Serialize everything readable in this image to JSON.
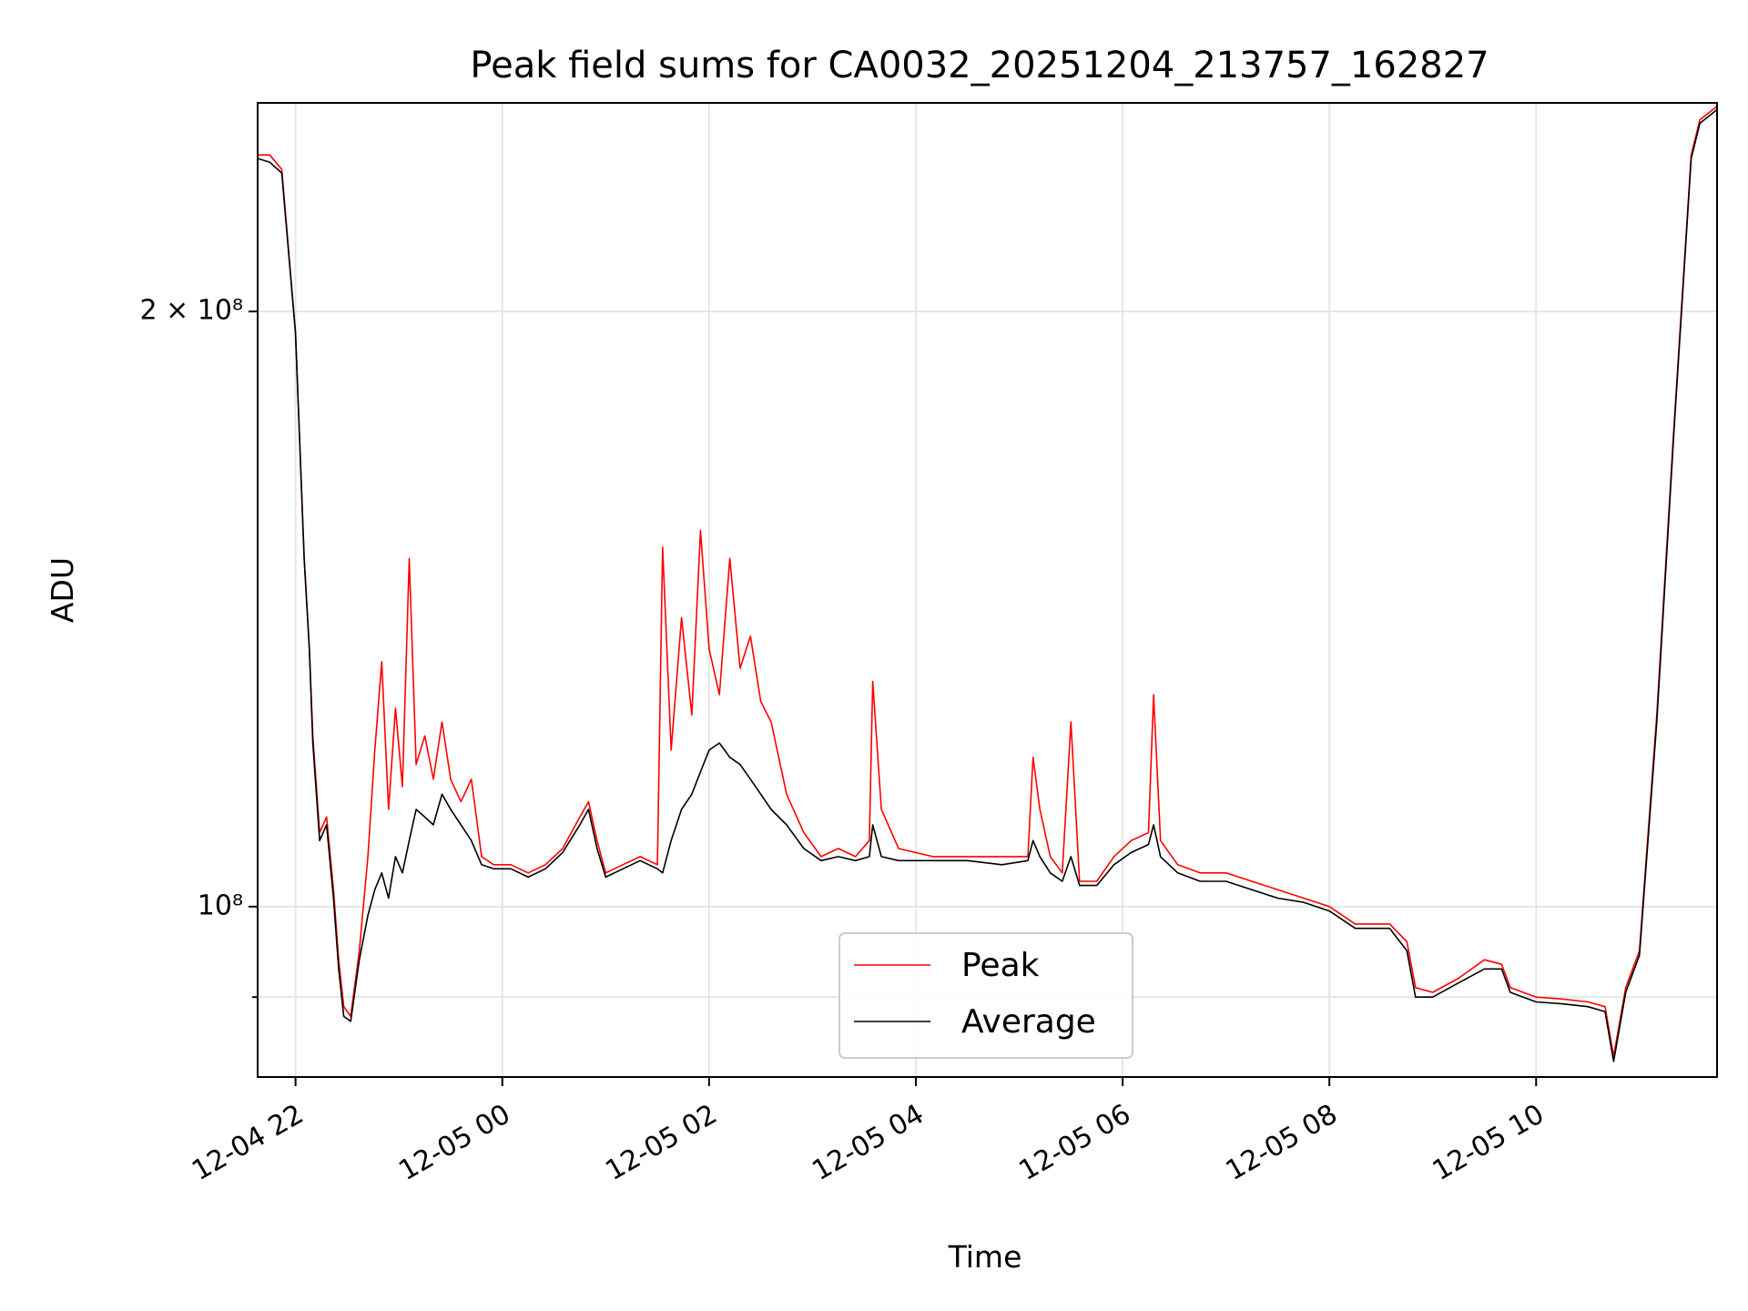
{
  "chart_data": {
    "type": "line",
    "title": "Peak field sums for CA0032_20251204_213757_162827",
    "xlabel": "Time",
    "ylabel": "ADU",
    "y_scale": "log",
    "ylim": [
      82000000,
      255000000
    ],
    "xlim": [
      "2025-12-04 21:38",
      "2025-12-05 11:45"
    ],
    "grid": true,
    "legend_position": "lower-center",
    "x_ticks": [
      {
        "value": "2025-12-04 22:00",
        "label": "12-04 22"
      },
      {
        "value": "2025-12-05 00:00",
        "label": "12-05 00"
      },
      {
        "value": "2025-12-05 02:00",
        "label": "12-05 02"
      },
      {
        "value": "2025-12-05 04:00",
        "label": "12-05 04"
      },
      {
        "value": "2025-12-05 06:00",
        "label": "12-05 06"
      },
      {
        "value": "2025-12-05 08:00",
        "label": "12-05 08"
      },
      {
        "value": "2025-12-05 10:00",
        "label": "12-05 10"
      }
    ],
    "y_ticks": [
      {
        "value": 200000000,
        "label": "2 × 10⁸",
        "major": true
      },
      {
        "value": 100000000,
        "label": "10⁸",
        "major": true
      },
      {
        "value": 90000000,
        "label": "",
        "major": false
      }
    ],
    "series": [
      {
        "name": "Peak",
        "color": "#ff0000",
        "points": [
          [
            "2025-12-04 21:38",
            240000000
          ],
          [
            "2025-12-04 21:45",
            240000000
          ],
          [
            "2025-12-04 21:52",
            236000000
          ],
          [
            "2025-12-04 22:00",
            195000000
          ],
          [
            "2025-12-04 22:05",
            150000000
          ],
          [
            "2025-12-04 22:08",
            135000000
          ],
          [
            "2025-12-04 22:10",
            122000000
          ],
          [
            "2025-12-04 22:14",
            109000000
          ],
          [
            "2025-12-04 22:18",
            111000000
          ],
          [
            "2025-12-04 22:22",
            102000000
          ],
          [
            "2025-12-04 22:25",
            94000000
          ],
          [
            "2025-12-04 22:28",
            89000000
          ],
          [
            "2025-12-04 22:32",
            88000000
          ],
          [
            "2025-12-04 22:37",
            95000000
          ],
          [
            "2025-12-04 22:42",
            106000000
          ],
          [
            "2025-12-04 22:46",
            120000000
          ],
          [
            "2025-12-04 22:50",
            133000000
          ],
          [
            "2025-12-04 22:54",
            112000000
          ],
          [
            "2025-12-04 22:58",
            126000000
          ],
          [
            "2025-12-04 23:02",
            115000000
          ],
          [
            "2025-12-04 23:06",
            150000000
          ],
          [
            "2025-12-04 23:10",
            118000000
          ],
          [
            "2025-12-04 23:15",
            122000000
          ],
          [
            "2025-12-04 23:20",
            116000000
          ],
          [
            "2025-12-04 23:25",
            124000000
          ],
          [
            "2025-12-04 23:30",
            116000000
          ],
          [
            "2025-12-04 23:36",
            113000000
          ],
          [
            "2025-12-04 23:42",
            116000000
          ],
          [
            "2025-12-04 23:48",
            106000000
          ],
          [
            "2025-12-04 23:55",
            105000000
          ],
          [
            "2025-12-05 00:05",
            105000000
          ],
          [
            "2025-12-05 00:15",
            104000000
          ],
          [
            "2025-12-05 00:25",
            105000000
          ],
          [
            "2025-12-05 00:35",
            107000000
          ],
          [
            "2025-12-05 00:45",
            111000000
          ],
          [
            "2025-12-05 00:50",
            113000000
          ],
          [
            "2025-12-05 00:55",
            108000000
          ],
          [
            "2025-12-05 01:00",
            104000000
          ],
          [
            "2025-12-05 01:10",
            105000000
          ],
          [
            "2025-12-05 01:20",
            106000000
          ],
          [
            "2025-12-05 01:30",
            105000000
          ],
          [
            "2025-12-05 01:33",
            152000000
          ],
          [
            "2025-12-05 01:38",
            120000000
          ],
          [
            "2025-12-05 01:44",
            140000000
          ],
          [
            "2025-12-05 01:50",
            125000000
          ],
          [
            "2025-12-05 01:55",
            155000000
          ],
          [
            "2025-12-05 02:00",
            135000000
          ],
          [
            "2025-12-05 02:06",
            128000000
          ],
          [
            "2025-12-05 02:12",
            150000000
          ],
          [
            "2025-12-05 02:18",
            132000000
          ],
          [
            "2025-12-05 02:24",
            137000000
          ],
          [
            "2025-12-05 02:30",
            127000000
          ],
          [
            "2025-12-05 02:36",
            124000000
          ],
          [
            "2025-12-05 02:45",
            114000000
          ],
          [
            "2025-12-05 02:55",
            109000000
          ],
          [
            "2025-12-05 03:05",
            106000000
          ],
          [
            "2025-12-05 03:15",
            107000000
          ],
          [
            "2025-12-05 03:25",
            106000000
          ],
          [
            "2025-12-05 03:33",
            108000000
          ],
          [
            "2025-12-05 03:35",
            130000000
          ],
          [
            "2025-12-05 03:40",
            112000000
          ],
          [
            "2025-12-05 03:50",
            107000000
          ],
          [
            "2025-12-05 04:10",
            106000000
          ],
          [
            "2025-12-05 04:30",
            106000000
          ],
          [
            "2025-12-05 04:50",
            106000000
          ],
          [
            "2025-12-05 05:05",
            106000000
          ],
          [
            "2025-12-05 05:08",
            119000000
          ],
          [
            "2025-12-05 05:12",
            112000000
          ],
          [
            "2025-12-05 05:18",
            106000000
          ],
          [
            "2025-12-05 05:25",
            104000000
          ],
          [
            "2025-12-05 05:30",
            124000000
          ],
          [
            "2025-12-05 05:35",
            103000000
          ],
          [
            "2025-12-05 05:45",
            103000000
          ],
          [
            "2025-12-05 05:55",
            106000000
          ],
          [
            "2025-12-05 06:05",
            108000000
          ],
          [
            "2025-12-05 06:15",
            109000000
          ],
          [
            "2025-12-05 06:18",
            128000000
          ],
          [
            "2025-12-05 06:22",
            108000000
          ],
          [
            "2025-12-05 06:32",
            105000000
          ],
          [
            "2025-12-05 06:45",
            104000000
          ],
          [
            "2025-12-05 07:00",
            104000000
          ],
          [
            "2025-12-05 07:15",
            103000000
          ],
          [
            "2025-12-05 07:30",
            102000000
          ],
          [
            "2025-12-05 07:45",
            101000000
          ],
          [
            "2025-12-05 08:00",
            100000000
          ],
          [
            "2025-12-05 08:15",
            98000000
          ],
          [
            "2025-12-05 08:35",
            98000000
          ],
          [
            "2025-12-05 08:45",
            96000000
          ],
          [
            "2025-12-05 08:50",
            91000000
          ],
          [
            "2025-12-05 09:00",
            90500000
          ],
          [
            "2025-12-05 09:15",
            92000000
          ],
          [
            "2025-12-05 09:30",
            94000000
          ],
          [
            "2025-12-05 09:40",
            93500000
          ],
          [
            "2025-12-05 09:45",
            91000000
          ],
          [
            "2025-12-05 10:00",
            90000000
          ],
          [
            "2025-12-05 10:15",
            89800000
          ],
          [
            "2025-12-05 10:30",
            89500000
          ],
          [
            "2025-12-05 10:40",
            89000000
          ],
          [
            "2025-12-05 10:45",
            84000000
          ],
          [
            "2025-12-05 10:52",
            91000000
          ],
          [
            "2025-12-05 11:00",
            95000000
          ],
          [
            "2025-12-05 11:10",
            125000000
          ],
          [
            "2025-12-05 11:20",
            175000000
          ],
          [
            "2025-12-05 11:30",
            240000000
          ],
          [
            "2025-12-05 11:35",
            250000000
          ],
          [
            "2025-12-05 11:45",
            254000000
          ]
        ]
      },
      {
        "name": "Average",
        "color": "#000000",
        "points": [
          [
            "2025-12-04 21:38",
            239000000
          ],
          [
            "2025-12-04 21:45",
            238000000
          ],
          [
            "2025-12-04 21:52",
            235000000
          ],
          [
            "2025-12-04 22:00",
            195000000
          ],
          [
            "2025-12-04 22:05",
            150000000
          ],
          [
            "2025-12-04 22:08",
            135000000
          ],
          [
            "2025-12-04 22:10",
            121000000
          ],
          [
            "2025-12-04 22:14",
            108000000
          ],
          [
            "2025-12-04 22:18",
            110000000
          ],
          [
            "2025-12-04 22:22",
            101000000
          ],
          [
            "2025-12-04 22:25",
            93000000
          ],
          [
            "2025-12-04 22:28",
            88000000
          ],
          [
            "2025-12-04 22:32",
            87500000
          ],
          [
            "2025-12-04 22:37",
            94000000
          ],
          [
            "2025-12-04 22:42",
            99000000
          ],
          [
            "2025-12-04 22:46",
            102000000
          ],
          [
            "2025-12-04 22:50",
            104000000
          ],
          [
            "2025-12-04 22:54",
            101000000
          ],
          [
            "2025-12-04 22:58",
            106000000
          ],
          [
            "2025-12-04 23:02",
            104000000
          ],
          [
            "2025-12-04 23:06",
            108000000
          ],
          [
            "2025-12-04 23:10",
            112000000
          ],
          [
            "2025-12-04 23:15",
            111000000
          ],
          [
            "2025-12-04 23:20",
            110000000
          ],
          [
            "2025-12-04 23:25",
            114000000
          ],
          [
            "2025-12-04 23:30",
            112000000
          ],
          [
            "2025-12-04 23:36",
            110000000
          ],
          [
            "2025-12-04 23:42",
            108000000
          ],
          [
            "2025-12-04 23:48",
            105000000
          ],
          [
            "2025-12-04 23:55",
            104500000
          ],
          [
            "2025-12-05 00:05",
            104500000
          ],
          [
            "2025-12-05 00:15",
            103500000
          ],
          [
            "2025-12-05 00:25",
            104500000
          ],
          [
            "2025-12-05 00:35",
            106500000
          ],
          [
            "2025-12-05 00:45",
            110000000
          ],
          [
            "2025-12-05 00:50",
            112000000
          ],
          [
            "2025-12-05 00:55",
            107000000
          ],
          [
            "2025-12-05 01:00",
            103500000
          ],
          [
            "2025-12-05 01:10",
            104500000
          ],
          [
            "2025-12-05 01:20",
            105500000
          ],
          [
            "2025-12-05 01:30",
            104500000
          ],
          [
            "2025-12-05 01:33",
            104000000
          ],
          [
            "2025-12-05 01:38",
            108000000
          ],
          [
            "2025-12-05 01:44",
            112000000
          ],
          [
            "2025-12-05 01:50",
            114000000
          ],
          [
            "2025-12-05 01:55",
            117000000
          ],
          [
            "2025-12-05 02:00",
            120000000
          ],
          [
            "2025-12-05 02:06",
            121000000
          ],
          [
            "2025-12-05 02:12",
            119000000
          ],
          [
            "2025-12-05 02:18",
            118000000
          ],
          [
            "2025-12-05 02:24",
            116000000
          ],
          [
            "2025-12-05 02:30",
            114000000
          ],
          [
            "2025-12-05 02:36",
            112000000
          ],
          [
            "2025-12-05 02:45",
            110000000
          ],
          [
            "2025-12-05 02:55",
            107000000
          ],
          [
            "2025-12-05 03:05",
            105500000
          ],
          [
            "2025-12-05 03:15",
            106000000
          ],
          [
            "2025-12-05 03:25",
            105500000
          ],
          [
            "2025-12-05 03:33",
            106000000
          ],
          [
            "2025-12-05 03:35",
            110000000
          ],
          [
            "2025-12-05 03:40",
            106000000
          ],
          [
            "2025-12-05 03:50",
            105500000
          ],
          [
            "2025-12-05 04:10",
            105500000
          ],
          [
            "2025-12-05 04:30",
            105500000
          ],
          [
            "2025-12-05 04:50",
            105000000
          ],
          [
            "2025-12-05 05:05",
            105500000
          ],
          [
            "2025-12-05 05:08",
            108000000
          ],
          [
            "2025-12-05 05:12",
            106000000
          ],
          [
            "2025-12-05 05:18",
            104000000
          ],
          [
            "2025-12-05 05:25",
            103000000
          ],
          [
            "2025-12-05 05:30",
            106000000
          ],
          [
            "2025-12-05 05:35",
            102500000
          ],
          [
            "2025-12-05 05:45",
            102500000
          ],
          [
            "2025-12-05 05:55",
            105000000
          ],
          [
            "2025-12-05 06:05",
            106500000
          ],
          [
            "2025-12-05 06:15",
            107500000
          ],
          [
            "2025-12-05 06:18",
            110000000
          ],
          [
            "2025-12-05 06:22",
            106000000
          ],
          [
            "2025-12-05 06:32",
            104000000
          ],
          [
            "2025-12-05 06:45",
            103000000
          ],
          [
            "2025-12-05 07:00",
            103000000
          ],
          [
            "2025-12-05 07:15",
            102000000
          ],
          [
            "2025-12-05 07:30",
            101000000
          ],
          [
            "2025-12-05 07:45",
            100500000
          ],
          [
            "2025-12-05 08:00",
            99500000
          ],
          [
            "2025-12-05 08:15",
            97500000
          ],
          [
            "2025-12-05 08:35",
            97500000
          ],
          [
            "2025-12-05 08:45",
            95000000
          ],
          [
            "2025-12-05 08:50",
            90000000
          ],
          [
            "2025-12-05 09:00",
            90000000
          ],
          [
            "2025-12-05 09:15",
            91500000
          ],
          [
            "2025-12-05 09:30",
            93000000
          ],
          [
            "2025-12-05 09:40",
            93000000
          ],
          [
            "2025-12-05 09:45",
            90500000
          ],
          [
            "2025-12-05 10:00",
            89500000
          ],
          [
            "2025-12-05 10:15",
            89300000
          ],
          [
            "2025-12-05 10:30",
            89000000
          ],
          [
            "2025-12-05 10:40",
            88500000
          ],
          [
            "2025-12-05 10:45",
            83500000
          ],
          [
            "2025-12-05 10:52",
            90500000
          ],
          [
            "2025-12-05 11:00",
            94500000
          ],
          [
            "2025-12-05 11:10",
            124000000
          ],
          [
            "2025-12-05 11:20",
            174000000
          ],
          [
            "2025-12-05 11:30",
            239000000
          ],
          [
            "2025-12-05 11:35",
            249000000
          ],
          [
            "2025-12-05 11:45",
            253000000
          ]
        ]
      }
    ]
  }
}
